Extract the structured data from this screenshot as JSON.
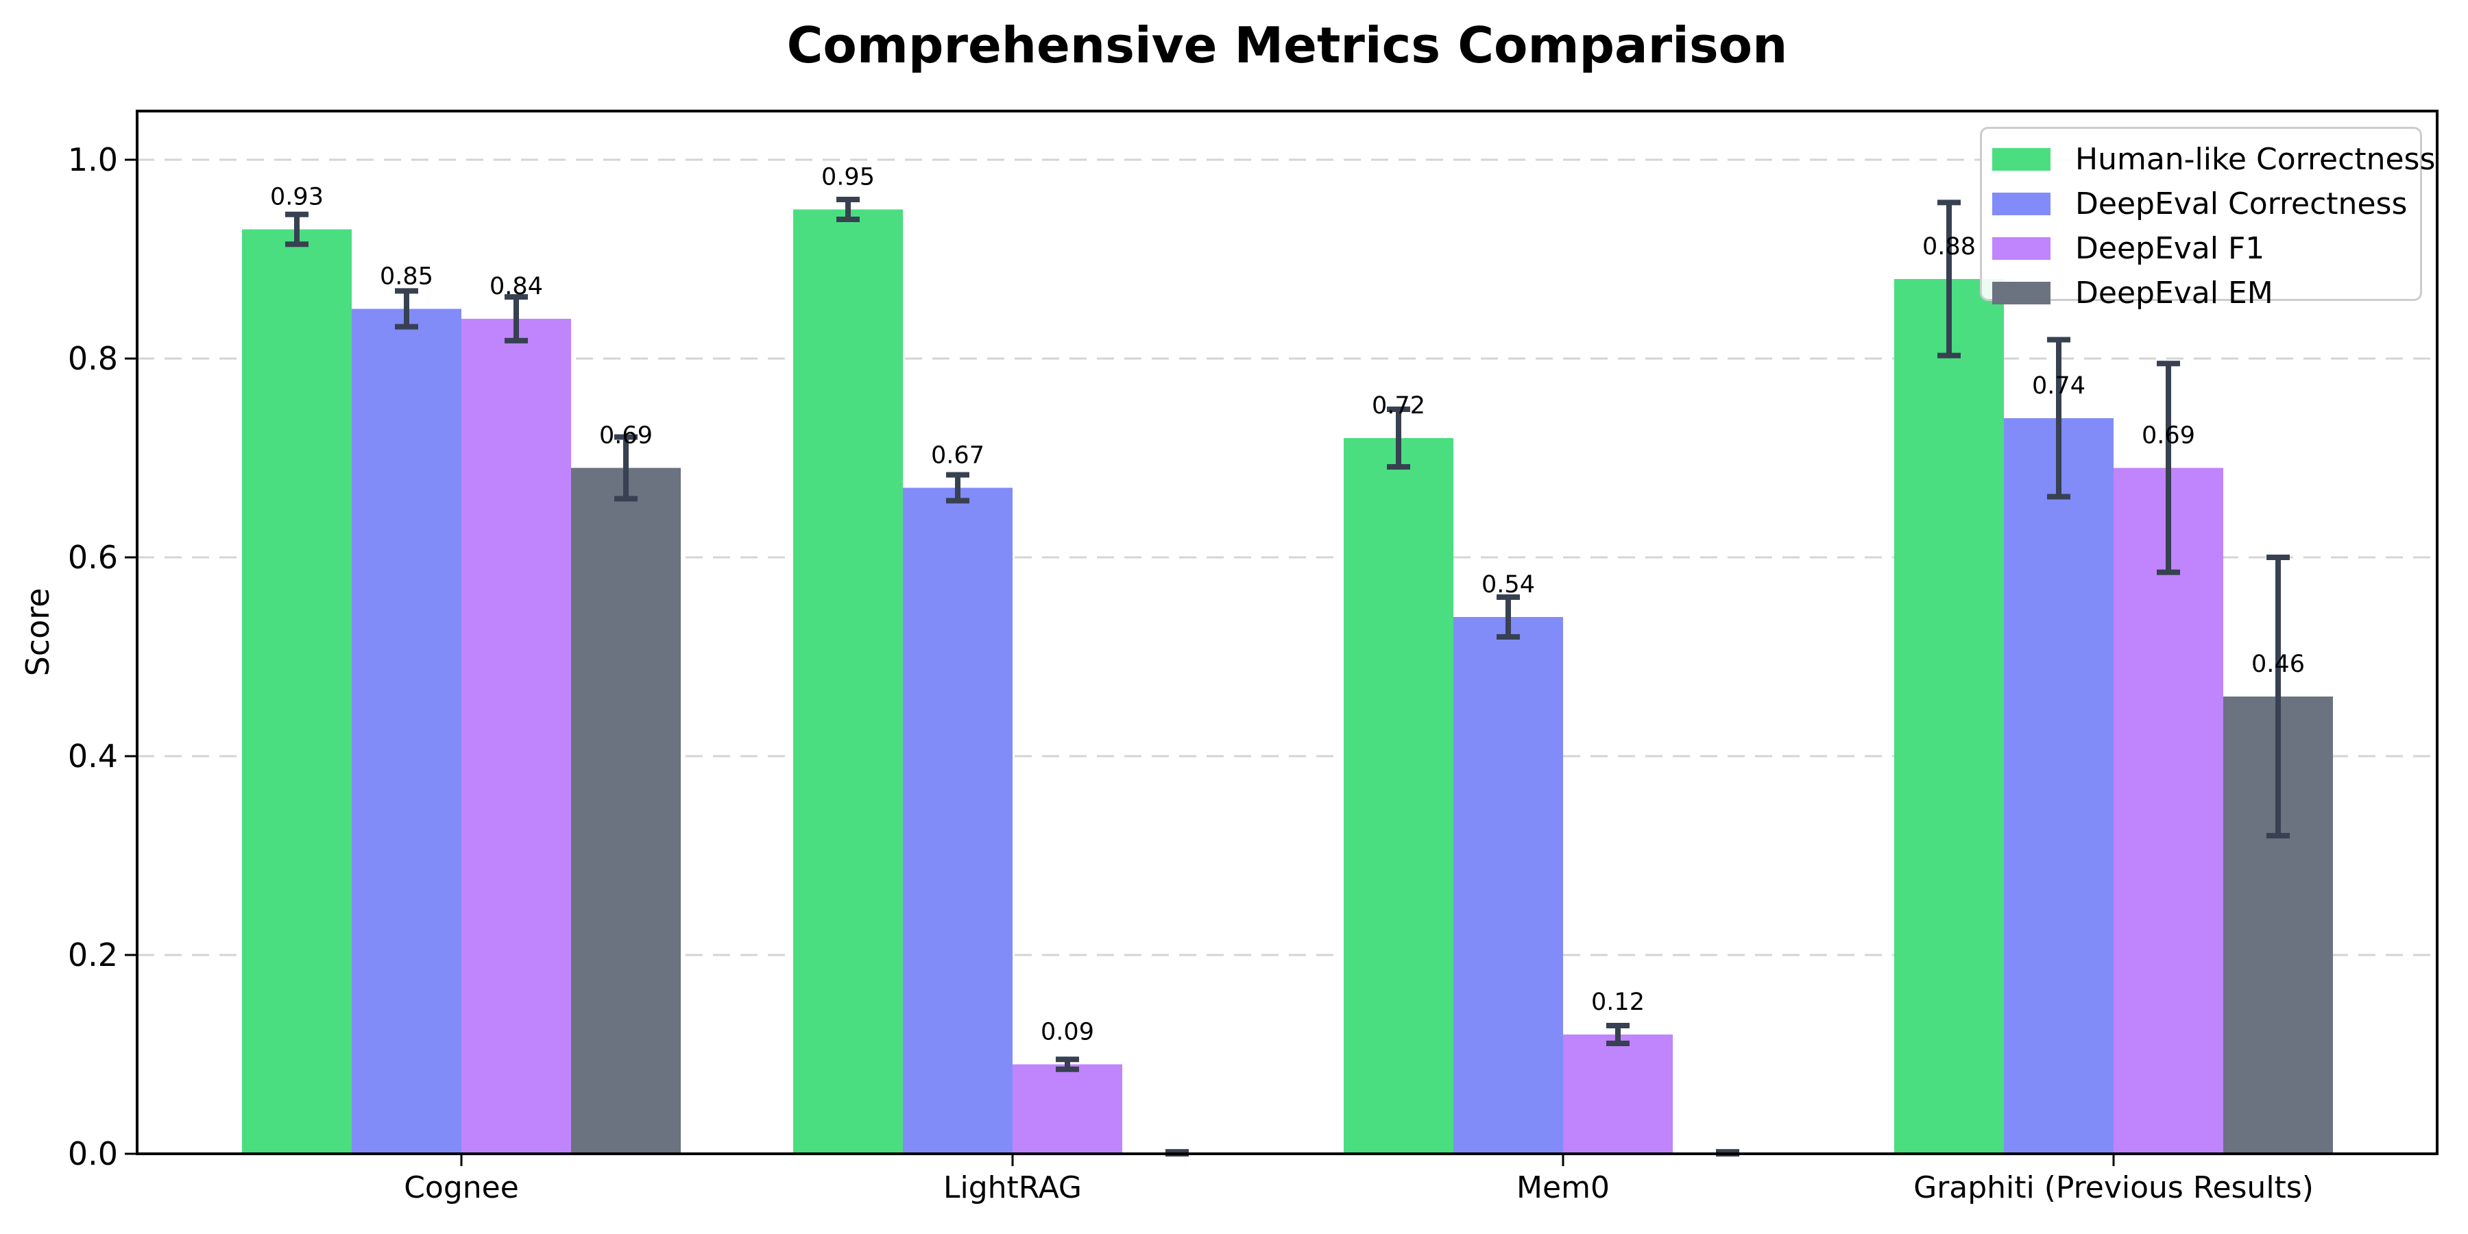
{
  "chart_data": {
    "type": "bar",
    "title": "Comprehensive Metrics Comparison",
    "ylabel": "Score",
    "xlabel": "",
    "categories": [
      "Cognee",
      "LightRAG",
      "Mem0",
      "Graphiti (Previous Results)"
    ],
    "series": [
      {
        "name": "Human-like Correctness",
        "color": "#4ade80",
        "values": [
          0.93,
          0.95,
          0.72,
          0.88
        ],
        "errors": [
          0.015,
          0.01,
          0.029,
          0.077
        ]
      },
      {
        "name": "DeepEval Correctness",
        "color": "#818cf8",
        "values": [
          0.85,
          0.67,
          0.54,
          0.74
        ],
        "errors": [
          0.018,
          0.013,
          0.02,
          0.079
        ]
      },
      {
        "name": "DeepEval F1",
        "color": "#c084fc",
        "values": [
          0.84,
          0.09,
          0.12,
          0.69
        ],
        "errors": [
          0.022,
          0.005,
          0.009,
          0.105
        ]
      },
      {
        "name": "DeepEval EM",
        "color": "#6b7280",
        "values": [
          0.69,
          0.0,
          0.0,
          0.46
        ],
        "errors": [
          0.031,
          0.002,
          0.002,
          0.14
        ]
      }
    ],
    "bar_value_label_decimals": 2,
    "zero_bars_unlabeled": true,
    "ytick_labels": [
      "0.0",
      "0.2",
      "0.4",
      "0.6",
      "0.8",
      "1.0"
    ],
    "ytick_values": [
      0.0,
      0.2,
      0.4,
      0.6,
      0.8,
      1.0
    ],
    "ylim": [
      0,
      1.049
    ],
    "grid": "horizontal-dashed",
    "grid_color": "#d4d4d4",
    "error_bar_color": "#374151",
    "axis_color": "#000000",
    "legend_position": "upper right"
  }
}
